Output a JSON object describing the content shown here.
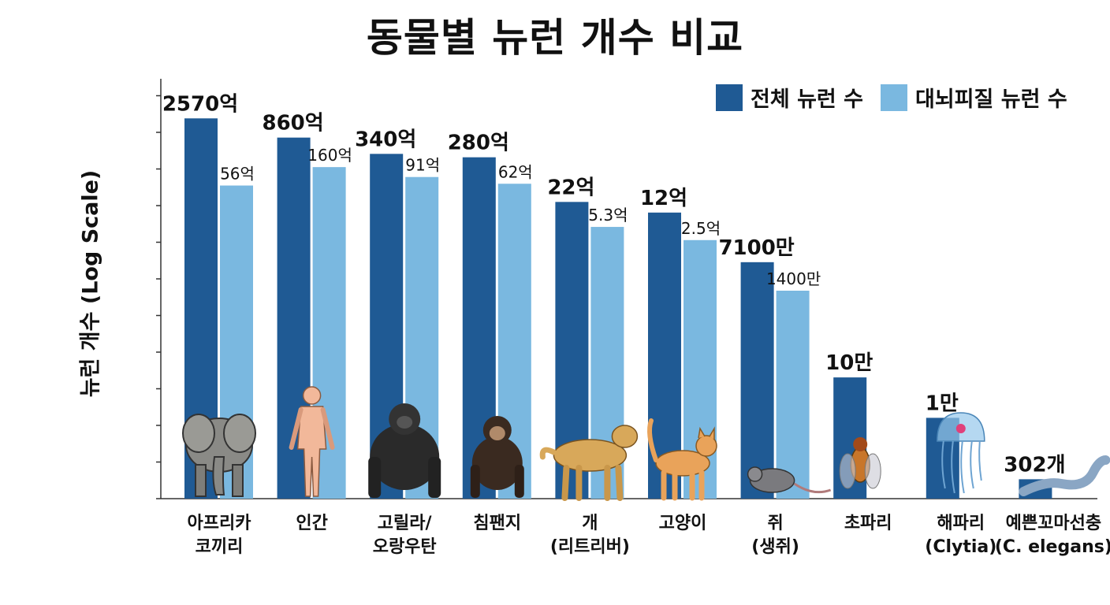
{
  "chart_data": {
    "type": "bar",
    "title": "동물별 뉴런 개수 비교",
    "ylabel": "뉴런 개수 (Log Scale)",
    "xlabel": "",
    "yscale": "log",
    "ylim": [
      100,
      1000000000000
    ],
    "legend_position": "top-right",
    "categories": [
      {
        "line1": "아프리카",
        "line2": "코끼리"
      },
      {
        "line1": "인간",
        "line2": ""
      },
      {
        "line1": "고릴라/",
        "line2": "오랑우탄"
      },
      {
        "line1": "침팬지",
        "line2": ""
      },
      {
        "line1": "개",
        "line2": "(리트리버)"
      },
      {
        "line1": "고양이",
        "line2": ""
      },
      {
        "line1": "쥐",
        "line2": "(생쥐)"
      },
      {
        "line1": "초파리",
        "line2": ""
      },
      {
        "line1": "해파리",
        "line2": "(Clytia)"
      },
      {
        "line1": "예쁜꼬마선충",
        "line2": "(C. elegans)"
      }
    ],
    "series": [
      {
        "name": "전체 뉴런 수",
        "color": "#1f5a94",
        "values": [
          257000000000,
          86000000000,
          34000000000,
          28000000000,
          2200000000,
          1200000000,
          71000000,
          100000,
          10000,
          302
        ],
        "labels": [
          "2570억",
          "860억",
          "340억",
          "280억",
          "22억",
          "12억",
          "7100만",
          "10만",
          "1만",
          "302개"
        ]
      },
      {
        "name": "대뇌피질 뉴런 수",
        "color": "#7ab8e0",
        "values": [
          5600000000,
          16000000000,
          9100000000,
          6200000000,
          530000000,
          250000000,
          14000000,
          null,
          null,
          null
        ],
        "labels": [
          "56억",
          "160억",
          "91억",
          "62억",
          "5.3억",
          "2.5억",
          "1400만",
          null,
          null,
          null
        ]
      }
    ],
    "icons": [
      "elephant-icon",
      "human-icon",
      "gorilla-icon",
      "chimpanzee-icon",
      "dog-icon",
      "cat-icon",
      "mouse-icon",
      "fruit-fly-icon",
      "jellyfish-icon",
      "worm-icon"
    ]
  }
}
